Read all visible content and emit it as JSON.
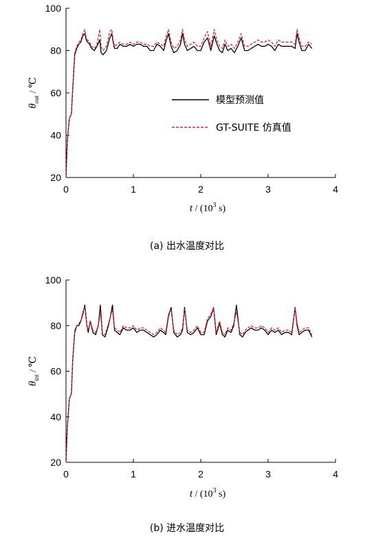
{
  "chart_data": [
    {
      "type": "line",
      "caption": "(a)   出水温度对比",
      "xlabel": {
        "var": "t",
        "unit_open": " / (10",
        "unit_sup": "3",
        "unit_close": " s)"
      },
      "ylabel": {
        "var": "θ",
        "sub": "out",
        "unit": "  /  ℃"
      },
      "xlim": [
        0,
        4
      ],
      "ylim": [
        20,
        100
      ],
      "xticks": [
        "0",
        "1",
        "2",
        "3",
        "4"
      ],
      "yticks": [
        "20",
        "40",
        "60",
        "80",
        "100"
      ],
      "grid": false,
      "legend_position": "center-right",
      "series": [
        {
          "name": "模型预测值",
          "color": "#000000",
          "dash": "solid",
          "x": [
            0,
            0.02,
            0.05,
            0.08,
            0.1,
            0.13,
            0.16,
            0.19,
            0.22,
            0.25,
            0.28,
            0.3,
            0.32,
            0.35,
            0.38,
            0.42,
            0.46,
            0.5,
            0.52,
            0.55,
            0.6,
            0.65,
            0.68,
            0.7,
            0.72,
            0.76,
            0.8,
            0.85,
            0.9,
            0.95,
            1.0,
            1.05,
            1.1,
            1.15,
            1.2,
            1.25,
            1.3,
            1.35,
            1.4,
            1.45,
            1.48,
            1.52,
            1.56,
            1.6,
            1.65,
            1.7,
            1.73,
            1.76,
            1.8,
            1.85,
            1.9,
            1.95,
            2.0,
            2.05,
            2.1,
            2.15,
            2.2,
            2.24,
            2.28,
            2.32,
            2.36,
            2.4,
            2.45,
            2.5,
            2.55,
            2.6,
            2.65,
            2.7,
            2.75,
            2.8,
            2.85,
            2.9,
            2.95,
            3.0,
            3.05,
            3.1,
            3.15,
            3.2,
            3.25,
            3.3,
            3.35,
            3.4,
            3.43,
            3.46,
            3.5,
            3.55,
            3.6,
            3.65
          ],
          "y": [
            20,
            38,
            48,
            50,
            62,
            78,
            81,
            83,
            84,
            87,
            88,
            85,
            84,
            83,
            81,
            80,
            82,
            85,
            79,
            78,
            80,
            86,
            88,
            84,
            81,
            81,
            83,
            82,
            82,
            83,
            82,
            83,
            83,
            82,
            82,
            80,
            80,
            83,
            82,
            80,
            84,
            88,
            82,
            79,
            80,
            83,
            88,
            83,
            80,
            81,
            82,
            80,
            80,
            84,
            86,
            80,
            87,
            83,
            80,
            79,
            83,
            80,
            81,
            79,
            82,
            86,
            80,
            80,
            81,
            82,
            83,
            82,
            82,
            83,
            82,
            80,
            83,
            82,
            82,
            82,
            82,
            81,
            88,
            84,
            80,
            80,
            83,
            81
          ]
        },
        {
          "name": "GT-SUITE 仿真值",
          "color": "#e8232a",
          "dash": "dashed",
          "x": [
            0,
            0.02,
            0.05,
            0.08,
            0.1,
            0.13,
            0.16,
            0.19,
            0.22,
            0.25,
            0.28,
            0.3,
            0.32,
            0.35,
            0.38,
            0.42,
            0.46,
            0.5,
            0.52,
            0.55,
            0.6,
            0.65,
            0.68,
            0.7,
            0.72,
            0.76,
            0.8,
            0.85,
            0.9,
            0.95,
            1.0,
            1.05,
            1.1,
            1.15,
            1.2,
            1.25,
            1.3,
            1.35,
            1.4,
            1.45,
            1.48,
            1.52,
            1.56,
            1.6,
            1.65,
            1.7,
            1.73,
            1.76,
            1.8,
            1.85,
            1.9,
            1.95,
            2.0,
            2.05,
            2.1,
            2.15,
            2.2,
            2.24,
            2.28,
            2.32,
            2.36,
            2.4,
            2.45,
            2.5,
            2.55,
            2.6,
            2.65,
            2.7,
            2.75,
            2.8,
            2.85,
            2.9,
            2.95,
            3.0,
            3.05,
            3.1,
            3.15,
            3.2,
            3.25,
            3.3,
            3.35,
            3.4,
            3.43,
            3.46,
            3.5,
            3.55,
            3.6,
            3.65
          ],
          "y": [
            20,
            38,
            48,
            50,
            62,
            79,
            82,
            84,
            85,
            88,
            90,
            86,
            85,
            84,
            82,
            81,
            83,
            90,
            82,
            80,
            82,
            89,
            90,
            85,
            82,
            83,
            84,
            83,
            83,
            84,
            83,
            84,
            84,
            83,
            83,
            82,
            82,
            84,
            83,
            82,
            86,
            90,
            84,
            81,
            82,
            85,
            90,
            85,
            82,
            83,
            84,
            82,
            82,
            86,
            89,
            82,
            90,
            85,
            82,
            81,
            85,
            82,
            83,
            81,
            84,
            88,
            82,
            82,
            83,
            84,
            85,
            84,
            84,
            85,
            84,
            82,
            85,
            84,
            84,
            84,
            84,
            83,
            90,
            86,
            82,
            82,
            84,
            83
          ]
        }
      ]
    },
    {
      "type": "line",
      "caption": "(b)   进水温度对比",
      "xlabel": {
        "var": "t",
        "unit_open": " / (10",
        "unit_sup": "3",
        "unit_close": " s)"
      },
      "ylabel": {
        "var": "θ",
        "sub": "int",
        "unit": "  /  ℃"
      },
      "xlim": [
        0,
        4
      ],
      "ylim": [
        20,
        100
      ],
      "xticks": [
        "0",
        "1",
        "2",
        "3",
        "4"
      ],
      "yticks": [
        "20",
        "40",
        "60",
        "80",
        "100"
      ],
      "grid": false,
      "series": [
        {
          "name": "模型预测值",
          "color": "#000000",
          "dash": "solid",
          "x": [
            0,
            0.02,
            0.05,
            0.08,
            0.1,
            0.13,
            0.16,
            0.19,
            0.22,
            0.25,
            0.28,
            0.31,
            0.33,
            0.36,
            0.4,
            0.44,
            0.48,
            0.51,
            0.54,
            0.58,
            0.62,
            0.66,
            0.69,
            0.72,
            0.76,
            0.8,
            0.85,
            0.9,
            0.95,
            1.0,
            1.05,
            1.1,
            1.15,
            1.2,
            1.25,
            1.3,
            1.35,
            1.4,
            1.45,
            1.48,
            1.52,
            1.56,
            1.6,
            1.65,
            1.7,
            1.73,
            1.76,
            1.8,
            1.85,
            1.9,
            1.95,
            2.0,
            2.05,
            2.1,
            2.15,
            2.19,
            2.23,
            2.28,
            2.32,
            2.36,
            2.4,
            2.45,
            2.49,
            2.53,
            2.58,
            2.62,
            2.66,
            2.7,
            2.75,
            2.8,
            2.85,
            2.9,
            2.95,
            3.0,
            3.05,
            3.1,
            3.15,
            3.2,
            3.25,
            3.3,
            3.35,
            3.4,
            3.43,
            3.46,
            3.5,
            3.55,
            3.6,
            3.65
          ],
          "y": [
            20,
            36,
            48,
            50,
            65,
            77,
            80,
            80,
            82,
            85,
            89,
            80,
            77,
            82,
            77,
            76,
            80,
            89,
            76,
            75,
            79,
            84,
            89,
            78,
            77,
            76,
            79,
            78,
            78,
            79,
            77,
            78,
            78,
            77,
            76,
            75,
            76,
            78,
            77,
            76,
            84,
            88,
            77,
            75,
            76,
            78,
            88,
            77,
            76,
            77,
            79,
            76,
            76,
            82,
            84,
            88,
            76,
            81,
            76,
            75,
            78,
            77,
            80,
            89,
            76,
            75,
            77,
            78,
            79,
            78,
            78,
            79,
            78,
            76,
            78,
            77,
            78,
            76,
            77,
            77,
            76,
            88,
            80,
            76,
            77,
            78,
            78,
            75
          ]
        },
        {
          "name": "GT-SUITE 仿真值",
          "color": "#e8232a",
          "dash": "dashed",
          "x": [
            0,
            0.02,
            0.05,
            0.08,
            0.1,
            0.13,
            0.16,
            0.19,
            0.22,
            0.25,
            0.28,
            0.31,
            0.33,
            0.36,
            0.4,
            0.44,
            0.48,
            0.51,
            0.54,
            0.58,
            0.62,
            0.66,
            0.69,
            0.72,
            0.76,
            0.8,
            0.85,
            0.9,
            0.95,
            1.0,
            1.05,
            1.1,
            1.15,
            1.2,
            1.25,
            1.3,
            1.35,
            1.4,
            1.45,
            1.48,
            1.52,
            1.56,
            1.6,
            1.65,
            1.7,
            1.73,
            1.76,
            1.8,
            1.85,
            1.9,
            1.95,
            2.0,
            2.05,
            2.1,
            2.15,
            2.19,
            2.23,
            2.28,
            2.32,
            2.36,
            2.4,
            2.45,
            2.49,
            2.53,
            2.58,
            2.62,
            2.66,
            2.7,
            2.75,
            2.8,
            2.85,
            2.9,
            2.95,
            3.0,
            3.05,
            3.1,
            3.15,
            3.2,
            3.25,
            3.3,
            3.35,
            3.4,
            3.43,
            3.46,
            3.5,
            3.55,
            3.6,
            3.65
          ],
          "y": [
            20,
            36,
            48,
            50,
            65,
            78,
            80,
            81,
            82,
            86,
            88,
            80,
            78,
            82,
            78,
            77,
            80,
            86,
            77,
            76,
            80,
            84,
            87,
            79,
            78,
            77,
            80,
            79,
            79,
            80,
            78,
            79,
            79,
            78,
            77,
            76,
            77,
            79,
            78,
            77,
            85,
            87,
            78,
            76,
            77,
            79,
            87,
            78,
            77,
            78,
            80,
            77,
            77,
            83,
            85,
            88,
            77,
            82,
            77,
            76,
            79,
            78,
            81,
            86,
            77,
            76,
            78,
            79,
            80,
            79,
            79,
            80,
            79,
            77,
            79,
            78,
            79,
            77,
            78,
            78,
            77,
            88,
            81,
            77,
            78,
            79,
            79,
            76
          ]
        }
      ]
    }
  ]
}
